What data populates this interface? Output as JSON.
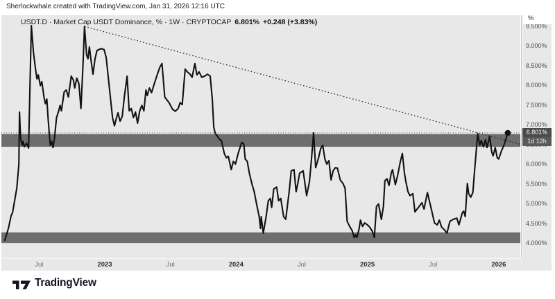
{
  "attribution": "Sherlockwhale created with TradingView.com, Jan 31, 2026 12:16 UTC",
  "legend": {
    "title": "USDT.D · Market Cap USDT Dominance, % · 1W · CRYPTOCAP",
    "last_value": "6.801%",
    "change": "+0.248 (+3.83%)"
  },
  "price_scale": {
    "unit_button": "%",
    "price_label": "6.801%",
    "countdown": "1d 12h",
    "ticks": [
      {
        "label": "9.500%",
        "value": 9.5
      },
      {
        "label": "9.000%",
        "value": 9.0
      },
      {
        "label": "8.500%",
        "value": 8.5
      },
      {
        "label": "8.000%",
        "value": 8.0
      },
      {
        "label": "7.500%",
        "value": 7.5
      },
      {
        "label": "7.000%",
        "value": 7.0
      },
      {
        "label": "6.500%",
        "value": 6.5
      },
      {
        "label": "6.000%",
        "value": 6.0
      },
      {
        "label": "5.500%",
        "value": 5.5
      },
      {
        "label": "5.000%",
        "value": 5.0
      },
      {
        "label": "4.500%",
        "value": 4.5
      },
      {
        "label": "4.000%",
        "value": 4.0
      }
    ]
  },
  "time_scale": {
    "ticks": [
      {
        "label": "Jul",
        "year": 2022.5,
        "bold": false
      },
      {
        "label": "2023",
        "year": 2023.0,
        "bold": true
      },
      {
        "label": "Jul",
        "year": 2023.5,
        "bold": false
      },
      {
        "label": "2024",
        "year": 2024.0,
        "bold": true
      },
      {
        "label": "Jul",
        "year": 2024.5,
        "bold": false
      },
      {
        "label": "2025",
        "year": 2025.0,
        "bold": true
      },
      {
        "label": "Jul",
        "year": 2025.5,
        "bold": false
      },
      {
        "label": "2026",
        "year": 2026.0,
        "bold": true
      }
    ]
  },
  "logo": {
    "text": "TradingView"
  },
  "colors": {
    "panel_bg": "#e8e8e8",
    "band": "#6e6e6e",
    "line": "#121212",
    "trendline": "#222222",
    "price_line": "#444444",
    "badge_bg": "#4a4a4a",
    "countdown_bg": "#5a5a5a",
    "axis_text": "#4c4c4c",
    "legend_text": "#1c1c1c",
    "logo_color": "#131722",
    "marker": "#111111"
  },
  "chart_data": {
    "type": "line",
    "symbol": "USDT.D",
    "title": "Market Cap USDT Dominance, %",
    "timeframe": "1W",
    "exchange": "CRYPTOCAP",
    "ylabel": "USDT Dominance (%)",
    "ylim": [
      3.64,
      9.78
    ],
    "xlim_years": [
      2022.22,
      2026.15
    ],
    "grid": false,
    "legend_position": "top-left",
    "last_price": 6.801,
    "zones": [
      {
        "name": "upper-resistance-zone",
        "from_pct": 6.45,
        "to_pct": 6.77
      },
      {
        "name": "lower-support-zone",
        "from_pct": 4.01,
        "to_pct": 4.28
      }
    ],
    "trendline": {
      "style": "dotted",
      "from": [
        2022.846,
        9.5
      ],
      "to": [
        2026.18,
        6.5
      ]
    },
    "price_line": {
      "style": "dotted",
      "value": 6.801
    },
    "last_point": [
      2026.069,
      6.801
    ],
    "series": [
      {
        "name": "USDT.D",
        "points": [
          [
            2022.239,
            4.08
          ],
          [
            2022.266,
            4.38
          ],
          [
            2022.287,
            4.7
          ],
          [
            2022.298,
            4.78
          ],
          [
            2022.33,
            5.4
          ],
          [
            2022.346,
            6.0
          ],
          [
            2022.351,
            7.33
          ],
          [
            2022.356,
            6.91
          ],
          [
            2022.362,
            6.61
          ],
          [
            2022.372,
            6.49
          ],
          [
            2022.378,
            6.59
          ],
          [
            2022.388,
            6.45
          ],
          [
            2022.404,
            6.54
          ],
          [
            2022.42,
            6.42
          ],
          [
            2022.431,
            8.06
          ],
          [
            2022.441,
            9.52
          ],
          [
            2022.457,
            8.85
          ],
          [
            2022.473,
            8.42
          ],
          [
            2022.484,
            8.17
          ],
          [
            2022.494,
            8.27
          ],
          [
            2022.51,
            8.0
          ],
          [
            2022.521,
            8.1
          ],
          [
            2022.537,
            7.71
          ],
          [
            2022.548,
            7.54
          ],
          [
            2022.559,
            7.66
          ],
          [
            2022.569,
            7.15
          ],
          [
            2022.585,
            6.49
          ],
          [
            2022.596,
            6.59
          ],
          [
            2022.606,
            6.43
          ],
          [
            2022.617,
            6.66
          ],
          [
            2022.633,
            7.19
          ],
          [
            2022.649,
            7.36
          ],
          [
            2022.66,
            7.5
          ],
          [
            2022.67,
            7.36
          ],
          [
            2022.691,
            7.84
          ],
          [
            2022.707,
            7.89
          ],
          [
            2022.723,
            7.71
          ],
          [
            2022.745,
            8.24
          ],
          [
            2022.761,
            8.14
          ],
          [
            2022.771,
            7.94
          ],
          [
            2022.787,
            8.19
          ],
          [
            2022.803,
            8.05
          ],
          [
            2022.819,
            7.42
          ],
          [
            2022.835,
            8.59
          ],
          [
            2022.846,
            9.5
          ],
          [
            2022.862,
            8.77
          ],
          [
            2022.872,
            8.68
          ],
          [
            2022.883,
            8.98
          ],
          [
            2022.894,
            8.68
          ],
          [
            2022.91,
            8.29
          ],
          [
            2022.926,
            8.68
          ],
          [
            2022.941,
            8.89
          ],
          [
            2022.973,
            8.94
          ],
          [
            2022.995,
            8.91
          ],
          [
            2023.011,
            8.71
          ],
          [
            2023.037,
            7.89
          ],
          [
            2023.059,
            7.19
          ],
          [
            2023.074,
            6.98
          ],
          [
            2023.09,
            7.19
          ],
          [
            2023.101,
            7.31
          ],
          [
            2023.117,
            7.1
          ],
          [
            2023.133,
            7.22
          ],
          [
            2023.149,
            7.71
          ],
          [
            2023.17,
            8.24
          ],
          [
            2023.186,
            7.36
          ],
          [
            2023.202,
            7.42
          ],
          [
            2023.218,
            7.19
          ],
          [
            2023.234,
            7.33
          ],
          [
            2023.25,
            7.05
          ],
          [
            2023.266,
            7.36
          ],
          [
            2023.282,
            7.5
          ],
          [
            2023.298,
            7.36
          ],
          [
            2023.314,
            7.89
          ],
          [
            2023.324,
            7.75
          ],
          [
            2023.34,
            7.94
          ],
          [
            2023.356,
            7.82
          ],
          [
            2023.378,
            8.06
          ],
          [
            2023.399,
            8.27
          ],
          [
            2023.42,
            8.47
          ],
          [
            2023.436,
            8.56
          ],
          [
            2023.457,
            7.71
          ],
          [
            2023.489,
            7.57
          ],
          [
            2023.516,
            7.4
          ],
          [
            2023.537,
            7.35
          ],
          [
            2023.559,
            7.42
          ],
          [
            2023.574,
            7.57
          ],
          [
            2023.59,
            7.52
          ],
          [
            2023.612,
            8.42
          ],
          [
            2023.628,
            8.35
          ],
          [
            2023.649,
            8.29
          ],
          [
            2023.665,
            8.21
          ],
          [
            2023.686,
            8.56
          ],
          [
            2023.702,
            8.27
          ],
          [
            2023.718,
            8.35
          ],
          [
            2023.739,
            8.21
          ],
          [
            2023.761,
            8.24
          ],
          [
            2023.782,
            8.29
          ],
          [
            2023.803,
            8.24
          ],
          [
            2023.819,
            7.66
          ],
          [
            2023.83,
            6.96
          ],
          [
            2023.84,
            6.8
          ],
          [
            2023.856,
            6.73
          ],
          [
            2023.872,
            6.64
          ],
          [
            2023.888,
            6.61
          ],
          [
            2023.91,
            6.28
          ],
          [
            2023.926,
            6.17
          ],
          [
            2023.941,
            6.21
          ],
          [
            2023.963,
            5.87
          ],
          [
            2023.979,
            6.08
          ],
          [
            2023.995,
            6.01
          ],
          [
            2024.016,
            6.28
          ],
          [
            2024.043,
            6.56
          ],
          [
            2024.059,
            6.52
          ],
          [
            2024.069,
            6.14
          ],
          [
            2024.085,
            6.08
          ],
          [
            2024.101,
            5.78
          ],
          [
            2024.122,
            5.49
          ],
          [
            2024.138,
            5.31
          ],
          [
            2024.154,
            5.03
          ],
          [
            2024.176,
            4.68
          ],
          [
            2024.186,
            4.38
          ],
          [
            2024.191,
            4.68
          ],
          [
            2024.207,
            4.26
          ],
          [
            2024.229,
            4.68
          ],
          [
            2024.245,
            5.08
          ],
          [
            2024.261,
            5.14
          ],
          [
            2024.271,
            4.91
          ],
          [
            2024.287,
            5.38
          ],
          [
            2024.309,
            5.43
          ],
          [
            2024.324,
            5.08
          ],
          [
            2024.34,
            5.14
          ],
          [
            2024.362,
            4.68
          ],
          [
            2024.378,
            4.61
          ],
          [
            2024.404,
            5.31
          ],
          [
            2024.42,
            5.84
          ],
          [
            2024.441,
            5.87
          ],
          [
            2024.457,
            5.31
          ],
          [
            2024.473,
            5.57
          ],
          [
            2024.484,
            5.78
          ],
          [
            2024.511,
            5.84
          ],
          [
            2024.537,
            5.21
          ],
          [
            2024.559,
            5.57
          ],
          [
            2024.574,
            6.14
          ],
          [
            2024.59,
            6.8
          ],
          [
            2024.606,
            5.92
          ],
          [
            2024.628,
            6.17
          ],
          [
            2024.644,
            6.4
          ],
          [
            2024.66,
            6.49
          ],
          [
            2024.676,
            6.14
          ],
          [
            2024.691,
            6.01
          ],
          [
            2024.707,
            6.1
          ],
          [
            2024.723,
            5.61
          ],
          [
            2024.739,
            5.84
          ],
          [
            2024.755,
            5.92
          ],
          [
            2024.771,
            5.91
          ],
          [
            2024.793,
            5.61
          ],
          [
            2024.814,
            5.52
          ],
          [
            2024.83,
            5.4
          ],
          [
            2024.846,
            4.56
          ],
          [
            2024.867,
            4.42
          ],
          [
            2024.883,
            4.33
          ],
          [
            2024.899,
            4.15
          ],
          [
            2024.91,
            4.22
          ],
          [
            2024.92,
            4.15
          ],
          [
            2024.936,
            4.36
          ],
          [
            2024.947,
            4.59
          ],
          [
            2024.963,
            4.43
          ],
          [
            2024.979,
            4.52
          ],
          [
            2025.0,
            4.47
          ],
          [
            2025.016,
            4.42
          ],
          [
            2025.037,
            4.31
          ],
          [
            2025.053,
            4.15
          ],
          [
            2025.069,
            4.94
          ],
          [
            2025.085,
            5.0
          ],
          [
            2025.106,
            4.61
          ],
          [
            2025.122,
            4.94
          ],
          [
            2025.133,
            5.59
          ],
          [
            2025.149,
            5.64
          ],
          [
            2025.165,
            5.47
          ],
          [
            2025.181,
            5.78
          ],
          [
            2025.191,
            5.87
          ],
          [
            2025.213,
            5.49
          ],
          [
            2025.229,
            5.7
          ],
          [
            2025.25,
            6.06
          ],
          [
            2025.266,
            6.28
          ],
          [
            2025.282,
            5.78
          ],
          [
            2025.293,
            5.56
          ],
          [
            2025.309,
            5.31
          ],
          [
            2025.324,
            5.21
          ],
          [
            2025.346,
            5.26
          ],
          [
            2025.362,
            4.8
          ],
          [
            2025.388,
            4.91
          ],
          [
            2025.415,
            5.03
          ],
          [
            2025.431,
            4.87
          ],
          [
            2025.457,
            5.29
          ],
          [
            2025.484,
            4.91
          ],
          [
            2025.511,
            4.52
          ],
          [
            2025.532,
            4.47
          ],
          [
            2025.548,
            4.59
          ],
          [
            2025.564,
            4.42
          ],
          [
            2025.59,
            4.33
          ],
          [
            2025.606,
            4.26
          ],
          [
            2025.628,
            4.56
          ],
          [
            2025.654,
            4.61
          ],
          [
            2025.681,
            4.64
          ],
          [
            2025.697,
            4.47
          ],
          [
            2025.723,
            4.78
          ],
          [
            2025.734,
            4.82
          ],
          [
            2025.745,
            4.68
          ],
          [
            2025.761,
            5.52
          ],
          [
            2025.771,
            5.26
          ],
          [
            2025.787,
            5.17
          ],
          [
            2025.803,
            5.29
          ],
          [
            2025.819,
            5.96
          ],
          [
            2025.84,
            6.78
          ],
          [
            2025.856,
            6.49
          ],
          [
            2025.867,
            6.61
          ],
          [
            2025.883,
            6.45
          ],
          [
            2025.899,
            6.63
          ],
          [
            2025.91,
            6.43
          ],
          [
            2025.931,
            6.71
          ],
          [
            2025.947,
            6.31
          ],
          [
            2025.957,
            6.22
          ],
          [
            2025.973,
            6.43
          ],
          [
            2025.989,
            6.17
          ],
          [
            2026.0,
            6.14
          ],
          [
            2026.021,
            6.35
          ],
          [
            2026.043,
            6.52
          ],
          [
            2026.069,
            6.801
          ]
        ]
      }
    ]
  }
}
